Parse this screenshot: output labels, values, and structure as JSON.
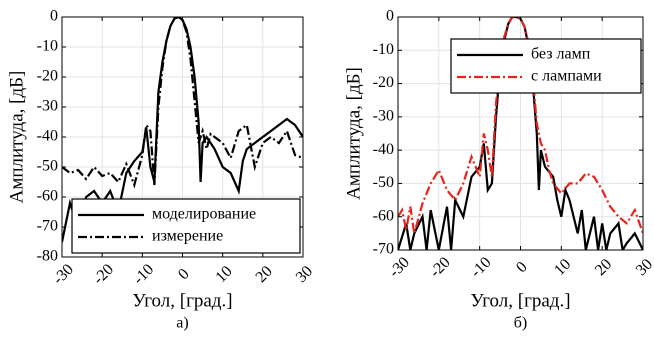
{
  "chart_data": [
    {
      "type": "line",
      "xlabel": "Угол, [град.]",
      "ylabel": "Амплитуда, [дБ]",
      "label": "а)",
      "xlim": [
        -30,
        30
      ],
      "xticks": [
        -30,
        -20,
        -10,
        0,
        10,
        20,
        30
      ],
      "ylim": [
        -80,
        0
      ],
      "yticks": [
        -80,
        -70,
        -60,
        -50,
        -40,
        -30,
        -20,
        -10,
        0
      ],
      "grid": true,
      "legend": "lower left",
      "series": [
        {
          "name": "моделирование",
          "color": "#000000",
          "linestyle": "solid",
          "x": [
            -30,
            -28,
            -26,
            -24,
            -22,
            -20,
            -18,
            -16,
            -14,
            -12,
            -10,
            -9,
            -8,
            -7,
            -6,
            -5,
            -4,
            -3,
            -2,
            -1,
            0,
            1,
            2,
            3,
            4,
            4.5,
            5,
            6,
            8,
            10,
            12,
            14,
            15,
            16,
            18,
            20,
            22,
            24,
            26,
            28,
            30
          ],
          "values": [
            -75,
            -62,
            -70,
            -60,
            -58,
            -62,
            -58,
            -65,
            -52,
            -48,
            -45,
            -37,
            -50,
            -55,
            -25,
            -15,
            -8,
            -3,
            -0.5,
            0,
            -1,
            -4,
            -10,
            -20,
            -35,
            -55,
            -42,
            -40,
            -44,
            -50,
            -52,
            -58,
            -48,
            -44,
            -42,
            -40,
            -38,
            -36,
            -34,
            -36,
            -40
          ]
        },
        {
          "name": "измерение",
          "color": "#000000",
          "linestyle": "dashdot",
          "x": [
            -30,
            -28,
            -26,
            -24,
            -22,
            -20,
            -18,
            -16,
            -14,
            -12,
            -10,
            -9,
            -8,
            -7,
            -6,
            -5,
            -4,
            -3,
            -2,
            -1,
            0,
            1,
            2,
            3,
            4,
            5,
            6,
            7,
            8,
            10,
            12,
            14,
            16,
            18,
            20,
            22,
            24,
            26,
            28,
            30
          ],
          "values": [
            -50,
            -52,
            -51,
            -54,
            -50,
            -53,
            -52,
            -55,
            -49,
            -56,
            -46,
            -36,
            -38,
            -56,
            -30,
            -17,
            -8,
            -3,
            -0.5,
            0,
            -1,
            -5,
            -14,
            -28,
            -42,
            -38,
            -44,
            -39,
            -40,
            -42,
            -47,
            -38,
            -36,
            -50,
            -42,
            -40,
            -42,
            -38,
            -46,
            -47
          ]
        }
      ]
    },
    {
      "type": "line",
      "xlabel": "Угол, [град.]",
      "ylabel": "Амплитуда, [дБ]",
      "label": "б)",
      "xlim": [
        -30,
        30
      ],
      "xticks": [
        -30,
        -20,
        -10,
        0,
        10,
        20,
        30
      ],
      "ylim": [
        -70,
        0
      ],
      "yticks": [
        -70,
        -60,
        -50,
        -40,
        -30,
        -20,
        -10,
        0
      ],
      "grid": true,
      "legend": "upper right",
      "series": [
        {
          "name": "без ламп",
          "color": "#000000",
          "linestyle": "solid",
          "x": [
            -30,
            -28,
            -27,
            -26,
            -24,
            -23,
            -22,
            -20,
            -18,
            -17,
            -16,
            -14,
            -12,
            -10,
            -9,
            -8,
            -7,
            -6,
            -5,
            -4,
            -3,
            -2,
            -1,
            0,
            1,
            2,
            3,
            4,
            4.5,
            5,
            6,
            8,
            9,
            10,
            11,
            12,
            14,
            15,
            16,
            18,
            19,
            20,
            21,
            22,
            24,
            25,
            26,
            28,
            30
          ],
          "values": [
            -70,
            -62,
            -70,
            -65,
            -60,
            -70,
            -58,
            -70,
            -57,
            -70,
            -55,
            -60,
            -48,
            -45,
            -38,
            -52,
            -50,
            -30,
            -15,
            -7,
            -2,
            0,
            0,
            -0.5,
            -3,
            -9,
            -20,
            -35,
            -52,
            -40,
            -45,
            -48,
            -55,
            -60,
            -52,
            -55,
            -65,
            -58,
            -70,
            -60,
            -70,
            -62,
            -70,
            -65,
            -62,
            -70,
            -68,
            -65,
            -70
          ]
        },
        {
          "name": "с лампами",
          "color": "#e8231c",
          "linestyle": "dashdot",
          "x": [
            -30,
            -29,
            -28,
            -27,
            -26,
            -24,
            -22,
            -20,
            -18,
            -16,
            -14,
            -12,
            -10,
            -9,
            -8,
            -7,
            -6,
            -5,
            -4,
            -3,
            -2,
            -1,
            0,
            1,
            2,
            3,
            4,
            5,
            6,
            7,
            8,
            10,
            12,
            14,
            16,
            18,
            20,
            22,
            24,
            26,
            28,
            30
          ],
          "values": [
            -60,
            -58,
            -64,
            -57,
            -65,
            -56,
            -50,
            -46,
            -52,
            -55,
            -50,
            -42,
            -48,
            -35,
            -40,
            -48,
            -26,
            -14,
            -6,
            -2,
            0,
            0,
            -0.5,
            -3,
            -8,
            -18,
            -32,
            -38,
            -40,
            -46,
            -50,
            -53,
            -50,
            -50,
            -47,
            -48,
            -52,
            -57,
            -60,
            -62,
            -58,
            -65
          ]
        }
      ]
    }
  ]
}
